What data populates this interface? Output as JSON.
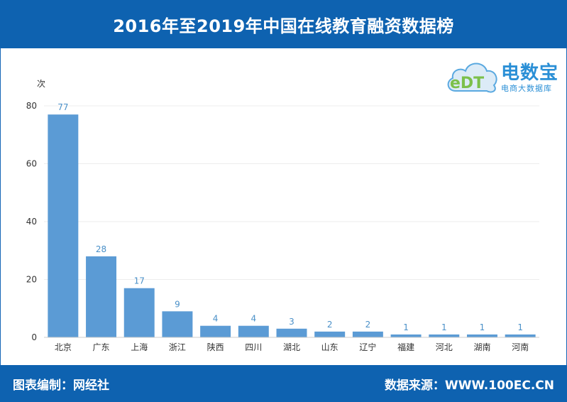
{
  "header": {
    "title": "2016年至2019年中国在线教育融资数据榜"
  },
  "footer": {
    "left": "图表编制：网经社",
    "right": "数据来源：WWW.100EC.CN"
  },
  "logo": {
    "name": "电数宝",
    "sub": "电商大数据库",
    "mark": "eDT"
  },
  "chart_data": {
    "type": "bar",
    "unit_label": "次",
    "categories": [
      "北京",
      "广东",
      "上海",
      "浙江",
      "陕西",
      "四川",
      "湖北",
      "山东",
      "辽宁",
      "福建",
      "河北",
      "湖南",
      "河南"
    ],
    "values": [
      77,
      28,
      17,
      9,
      4,
      4,
      3,
      2,
      2,
      1,
      1,
      1,
      1
    ],
    "ylim": [
      0,
      80
    ],
    "yticks": [
      0,
      20,
      40,
      60,
      80
    ],
    "grid": true,
    "bar_color": "#5b9bd5",
    "label_color": "#4a90c8"
  }
}
